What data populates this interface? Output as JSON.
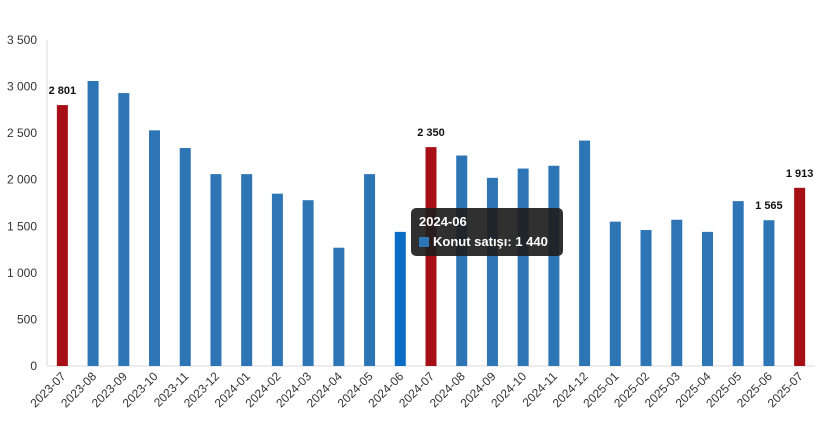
{
  "chart_data": {
    "type": "bar",
    "categories": [
      "2023-07",
      "2023-08",
      "2023-09",
      "2023-10",
      "2023-11",
      "2023-12",
      "2024-01",
      "2024-02",
      "2024-03",
      "2024-04",
      "2024-05",
      "2024-06",
      "2024-07",
      "2024-08",
      "2024-09",
      "2024-10",
      "2024-11",
      "2024-12",
      "2025-01",
      "2025-02",
      "2025-03",
      "2025-04",
      "2025-05",
      "2025-06",
      "2025-07"
    ],
    "series": [
      {
        "name": "Konut satışı",
        "values": [
          2801,
          3060,
          2930,
          2530,
          2340,
          2060,
          2060,
          1850,
          1780,
          1270,
          2060,
          1440,
          2350,
          2260,
          2020,
          2120,
          2150,
          2420,
          1550,
          1460,
          1570,
          1440,
          1770,
          1565,
          1913
        ]
      }
    ],
    "ylim": [
      0,
      3500
    ],
    "yticks": [
      0,
      500,
      1000,
      1500,
      2000,
      2500,
      3000,
      3500
    ],
    "ytick_labels": [
      "0",
      "500",
      "1 000",
      "1 500",
      "2 000",
      "2 500",
      "3 000",
      "3 500"
    ],
    "grid": false,
    "colors": {
      "default": "#2e75b6",
      "highlight": "#a50f15",
      "hover": "#0a6cc4"
    },
    "highlighted_categories": [
      "2023-07",
      "2024-07",
      "2025-07"
    ],
    "hovered_category": "2024-06",
    "data_labels": [
      {
        "category": "2023-07",
        "text": "2 801"
      },
      {
        "category": "2024-07",
        "text": "2 350"
      },
      {
        "category": "2025-06",
        "text": "1 565"
      },
      {
        "category": "2025-07",
        "text": "1 913"
      }
    ]
  },
  "tooltip": {
    "title": "2024-06",
    "label": "Konut satışı: 1 440"
  }
}
